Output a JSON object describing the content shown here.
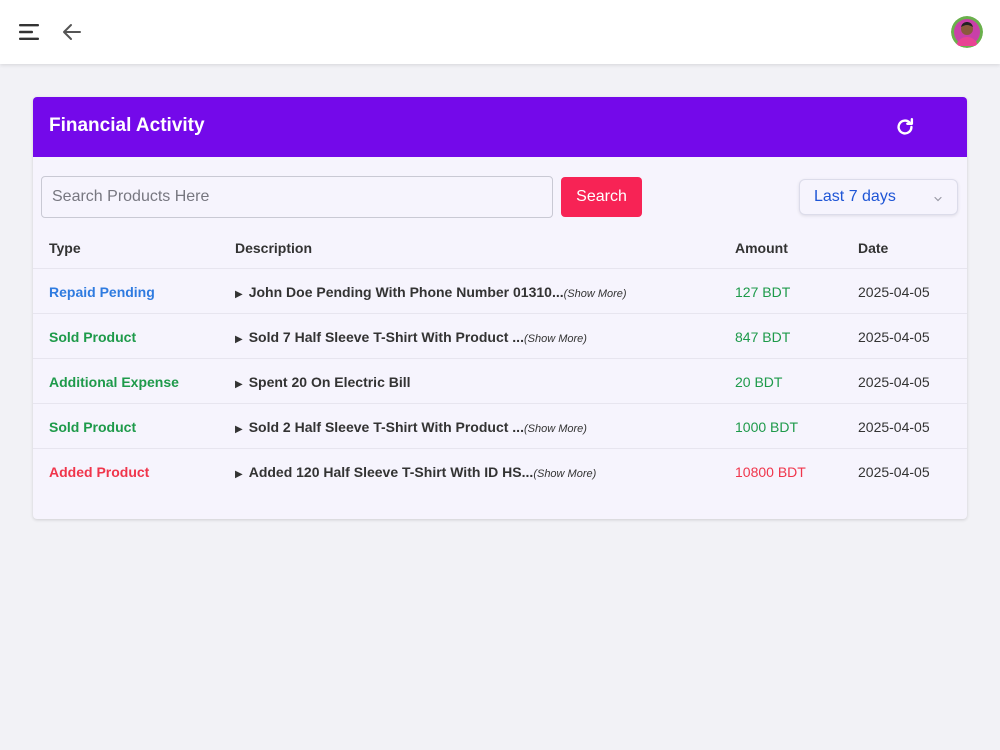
{
  "header": {
    "menu_icon": "hamburger-menu-icon",
    "back_icon": "arrow-left-icon",
    "avatar_icon": "user-avatar"
  },
  "card": {
    "title": "Financial Activity",
    "refresh_icon": "refresh-icon",
    "accent_color": "#7409ea"
  },
  "toolbar": {
    "search_placeholder": "Search Products Here",
    "search_value": "",
    "search_button_label": "Search",
    "search_button_color": "#f72355",
    "range_selected": "Last 7 days",
    "range_icon": "chevron-down-icon"
  },
  "table": {
    "columns": [
      "Type",
      "Description",
      "Amount",
      "Date"
    ],
    "show_more_label": "(Show More)",
    "rows": [
      {
        "type": "Repaid Pending",
        "type_color": "#2f7be0",
        "description": "John Doe Pending With Phone Number 01310...",
        "show_more": true,
        "amount": "127 BDT",
        "amount_color": "#1e9a4a",
        "date": "2025-04-05"
      },
      {
        "type": "Sold Product",
        "type_color": "#1e9a4a",
        "description": "Sold 7 Half Sleeve T-Shirt With Product ...",
        "show_more": true,
        "amount": "847 BDT",
        "amount_color": "#1e9a4a",
        "date": "2025-04-05"
      },
      {
        "type": "Additional Expense",
        "type_color": "#1e9a4a",
        "description": "Spent 20 On Electric Bill",
        "show_more": false,
        "amount": "20 BDT",
        "amount_color": "#1e9a4a",
        "date": "2025-04-05"
      },
      {
        "type": "Sold Product",
        "type_color": "#1e9a4a",
        "description": "Sold 2 Half Sleeve T-Shirt With Product ...",
        "show_more": true,
        "amount": "1000 BDT",
        "amount_color": "#1e9a4a",
        "date": "2025-04-05"
      },
      {
        "type": "Added Product",
        "type_color": "#f0354b",
        "description": "Added 120 Half Sleeve T-Shirt With ID HS...",
        "show_more": true,
        "amount": "10800 BDT",
        "amount_color": "#f0354b",
        "date": "2025-04-05"
      }
    ]
  }
}
